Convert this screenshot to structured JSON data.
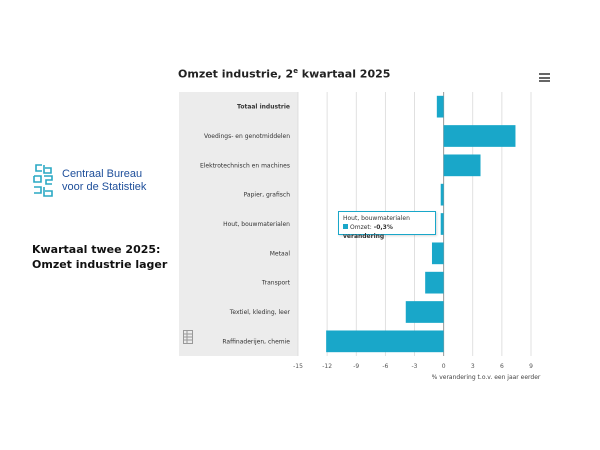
{
  "logo": {
    "line1": "Centraal Bureau",
    "line2": "voor de Statistiek",
    "brand_color": "#1d4e9a",
    "logo_icon": "cbs-logo-icon"
  },
  "headline": {
    "line1": "Kwartaal twee 2025:",
    "line2": "Omzet industrie lager"
  },
  "chart_header": {
    "title_pre": "Omzet industrie, 2",
    "title_sup": "e",
    "title_post": " kwartaal 2025",
    "menu_icon": "hamburger-menu-icon"
  },
  "tooltip": {
    "category": "Hout, bouwmaterialen",
    "series_label": "Omzet:",
    "value_text": "-0,3% verandering"
  },
  "chart_data": {
    "type": "bar",
    "orientation": "horizontal",
    "categories": [
      "Totaal industrie",
      "Voedings- en genotmiddelen",
      "Elektrotechnisch en machines",
      "Papier, grafisch",
      "Hout, bouwmaterialen",
      "Metaal",
      "Transport",
      "Textiel, kleding, leer",
      "Raffinaderijen, chemie"
    ],
    "bold_category_index": 0,
    "series": [
      {
        "values": [
          -0.7,
          7.4,
          3.8,
          -0.3,
          -0.3,
          -1.2,
          -1.9,
          -3.9,
          -12.1
        ],
        "color": "#19a7c9"
      }
    ],
    "xlim": [
      -15,
      9
    ],
    "xticks": [
      -15,
      -12,
      -9,
      -6,
      -3,
      0,
      3,
      6,
      9
    ],
    "xlabel": "% verandering t.o.v. een jaar eerder",
    "grid": true,
    "label_panel_color": "#ececec"
  }
}
